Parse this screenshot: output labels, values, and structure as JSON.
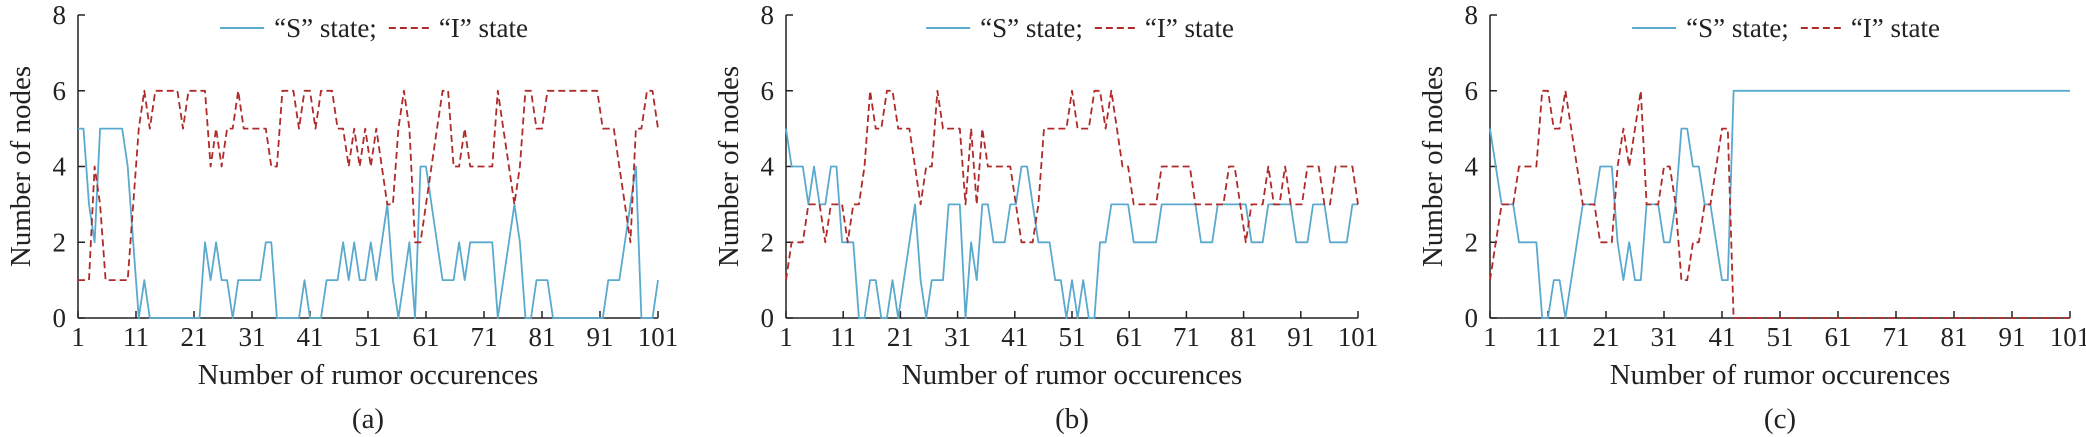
{
  "figure": {
    "panels": [
      "(a)",
      "(b)",
      "(c)"
    ]
  },
  "colors": {
    "s_state": "#5aa9cf",
    "i_state": "#b02a2a",
    "axis": "#222222"
  },
  "chart_data": [
    {
      "type": "line",
      "panel_label": "(a)",
      "xlabel": "Number of rumor occurences",
      "ylabel": "Number of nodes",
      "xlim": [
        1,
        101
      ],
      "ylim": [
        0,
        8
      ],
      "xticks": [
        1,
        11,
        21,
        31,
        41,
        51,
        61,
        71,
        81,
        91,
        101
      ],
      "yticks": [
        0,
        2,
        4,
        6,
        8
      ],
      "grid": false,
      "legend_position": "top-right",
      "series": [
        {
          "name": "“S” state;",
          "style": "solid",
          "color": "#5aa9cf",
          "values": [
            5,
            5,
            3,
            2,
            5,
            5,
            5,
            5,
            5,
            4,
            2,
            0,
            1,
            0,
            0,
            0,
            0,
            0,
            0,
            0,
            0,
            0,
            0,
            2,
            1,
            2,
            1,
            1,
            0,
            1,
            1,
            1,
            1,
            1,
            2,
            2,
            0,
            0,
            0,
            0,
            0,
            1,
            0,
            0,
            0,
            1,
            1,
            1,
            2,
            1,
            2,
            1,
            1,
            2,
            1,
            2,
            3,
            1,
            0,
            1,
            2,
            0,
            4,
            4,
            3,
            2,
            1,
            1,
            1,
            2,
            1,
            2,
            2,
            2,
            2,
            2,
            0,
            1,
            2,
            3,
            2,
            0,
            0,
            1,
            1,
            1,
            0,
            0,
            0,
            0,
            0,
            0,
            0,
            0,
            0,
            0,
            1,
            1,
            1,
            2,
            3,
            4,
            0,
            0,
            0,
            1
          ]
        },
        {
          "name": "“I” state",
          "style": "dashed",
          "color": "#b02a2a",
          "values": [
            1,
            1,
            1,
            4,
            3,
            1,
            1,
            1,
            1,
            1,
            3,
            5,
            6,
            5,
            6,
            6,
            6,
            6,
            6,
            5,
            6,
            6,
            6,
            6,
            4,
            5,
            4,
            5,
            5,
            6,
            5,
            5,
            5,
            5,
            5,
            4,
            4,
            6,
            6,
            6,
            5,
            6,
            6,
            5,
            6,
            6,
            6,
            5,
            5,
            4,
            5,
            4,
            5,
            4,
            5,
            4,
            3,
            3,
            5,
            6,
            5,
            2,
            2,
            3,
            4,
            5,
            6,
            6,
            4,
            4,
            5,
            4,
            4,
            4,
            4,
            4,
            6,
            5,
            4,
            3,
            4,
            6,
            6,
            5,
            5,
            6,
            6,
            6,
            6,
            6,
            6,
            6,
            6,
            6,
            6,
            5,
            5,
            5,
            4,
            3,
            2,
            5,
            5,
            6,
            6,
            5
          ]
        }
      ]
    },
    {
      "type": "line",
      "panel_label": "(b)",
      "xlabel": "Number of rumor occurences",
      "ylabel": "Number of nodes",
      "xlim": [
        1,
        101
      ],
      "ylim": [
        0,
        8
      ],
      "xticks": [
        1,
        11,
        21,
        31,
        41,
        51,
        61,
        71,
        81,
        91,
        101
      ],
      "yticks": [
        0,
        2,
        4,
        6,
        8
      ],
      "grid": false,
      "legend_position": "top-right",
      "series": [
        {
          "name": "“S” state;",
          "style": "solid",
          "color": "#5aa9cf",
          "values": [
            5,
            4,
            4,
            4,
            3,
            4,
            3,
            3,
            4,
            4,
            2,
            2,
            2,
            0,
            0,
            1,
            1,
            0,
            0,
            1,
            0,
            1,
            2,
            3,
            1,
            0,
            1,
            1,
            1,
            3,
            3,
            3,
            0,
            2,
            1,
            3,
            3,
            2,
            2,
            2,
            3,
            3,
            4,
            4,
            3,
            2,
            2,
            2,
            1,
            1,
            0,
            1,
            0,
            1,
            0,
            0,
            2,
            2,
            3,
            3,
            3,
            3,
            2,
            2,
            2,
            2,
            2,
            3,
            3,
            3,
            3,
            3,
            3,
            3,
            2,
            2,
            2,
            3,
            3,
            3,
            3,
            3,
            3,
            2,
            2,
            2,
            3,
            3,
            3,
            3,
            3,
            2,
            2,
            2,
            3,
            3,
            3,
            2,
            2,
            2,
            2,
            3,
            3
          ]
        },
        {
          "name": "“I” state",
          "style": "dashed",
          "color": "#b02a2a",
          "values": [
            1,
            2,
            2,
            2,
            3,
            3,
            3,
            2,
            3,
            3,
            3,
            2,
            3,
            3,
            4,
            6,
            5,
            5,
            6,
            6,
            5,
            5,
            5,
            4,
            3,
            4,
            4,
            6,
            5,
            5,
            5,
            5,
            3,
            5,
            3,
            5,
            4,
            4,
            4,
            4,
            4,
            3,
            2,
            2,
            2,
            3,
            5,
            5,
            5,
            5,
            5,
            6,
            5,
            5,
            5,
            6,
            6,
            5,
            6,
            5,
            4,
            4,
            3,
            3,
            3,
            3,
            3,
            4,
            4,
            4,
            4,
            4,
            4,
            3,
            3,
            3,
            3,
            3,
            3,
            4,
            4,
            3,
            2,
            3,
            3,
            3,
            4,
            3,
            3,
            4,
            3,
            3,
            3,
            4,
            4,
            4,
            3,
            3,
            4,
            4,
            4,
            4,
            3
          ]
        }
      ]
    },
    {
      "type": "line",
      "panel_label": "(c)",
      "xlabel": "Number of rumor occurences",
      "ylabel": "Number of nodes",
      "xlim": [
        1,
        101
      ],
      "ylim": [
        0,
        8
      ],
      "xticks": [
        1,
        11,
        21,
        31,
        41,
        51,
        61,
        71,
        81,
        91,
        101
      ],
      "yticks": [
        0,
        2,
        4,
        6,
        8
      ],
      "grid": false,
      "legend_position": "top-right",
      "series": [
        {
          "name": "“S” state;",
          "style": "solid",
          "color": "#5aa9cf",
          "values": [
            5,
            4,
            3,
            3,
            3,
            2,
            2,
            2,
            2,
            0,
            0,
            1,
            1,
            0,
            1,
            2,
            3,
            3,
            3,
            4,
            4,
            4,
            2,
            1,
            2,
            1,
            1,
            3,
            3,
            3,
            2,
            2,
            3,
            5,
            5,
            4,
            4,
            3,
            3,
            2,
            1,
            1,
            6,
            6,
            6,
            6,
            6,
            6,
            6,
            6,
            6,
            6,
            6,
            6,
            6,
            6,
            6,
            6,
            6,
            6,
            6,
            6,
            6,
            6,
            6,
            6,
            6,
            6,
            6,
            6,
            6,
            6,
            6,
            6,
            6,
            6,
            6,
            6,
            6,
            6,
            6,
            6,
            6,
            6,
            6,
            6,
            6,
            6,
            6,
            6,
            6,
            6,
            6,
            6,
            6,
            6,
            6,
            6,
            6,
            6,
            6
          ]
        },
        {
          "name": "“I” state",
          "style": "dashed",
          "color": "#b02a2a",
          "values": [
            1,
            2,
            3,
            3,
            3,
            4,
            4,
            4,
            4,
            6,
            6,
            5,
            5,
            6,
            5,
            4,
            3,
            3,
            3,
            2,
            2,
            2,
            4,
            5,
            4,
            5,
            6,
            3,
            3,
            3,
            4,
            4,
            3,
            1,
            1,
            2,
            2,
            3,
            3,
            4,
            5,
            5,
            0,
            0,
            0,
            0,
            0,
            0,
            0,
            0,
            0,
            0,
            0,
            0,
            0,
            0,
            0,
            0,
            0,
            0,
            0,
            0,
            0,
            0,
            0,
            0,
            0,
            0,
            0,
            0,
            0,
            0,
            0,
            0,
            0,
            0,
            0,
            0,
            0,
            0,
            0,
            0,
            0,
            0,
            0,
            0,
            0,
            0,
            0,
            0,
            0,
            0,
            0,
            0,
            0,
            0,
            0,
            0,
            0,
            0,
            0
          ]
        }
      ]
    }
  ]
}
